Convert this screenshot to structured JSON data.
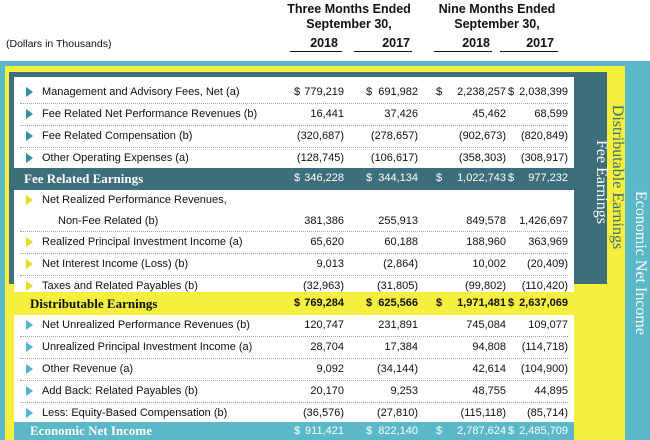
{
  "header": {
    "three_months": [
      "Three Months Ended",
      "September 30,"
    ],
    "nine_months": [
      "Nine Months Ended",
      "September 30,"
    ],
    "years": [
      "2018",
      "2017",
      "2018",
      "2017"
    ],
    "dollars_note": "(Dollars in Thousands)"
  },
  "side_labels": {
    "fee_related": "Fee Earnings",
    "distributable": "Distributable Earnings",
    "economic": "Economic Net Income"
  },
  "currency_symbol": "$",
  "rows": [
    {
      "label": "Management and Advisory Fees, Net (a)",
      "values": [
        "779,219",
        "691,982",
        "2,238,257",
        "2,038,399"
      ],
      "dollar": true
    },
    {
      "label": "Fee Related Net Performance Revenues (b)",
      "values": [
        "16,441",
        "37,426",
        "45,462",
        "68,599"
      ]
    },
    {
      "label": "Fee Related Compensation (b)",
      "values": [
        "(320,687)",
        "(278,657)",
        "(902,673)",
        "(820,849)"
      ]
    },
    {
      "label": "Other Operating Expenses (a)",
      "values": [
        "(128,745)",
        "(106,617)",
        "(358,303)",
        "(308,917)"
      ]
    },
    {
      "label": "Fee Related Earnings",
      "values": [
        "346,228",
        "344,134",
        "1,022,743",
        "977,232"
      ],
      "dollar": true
    },
    {
      "label": "Net Realized Performance Revenues,",
      "label2": "Non-Fee Related (b)",
      "values": [
        "381,386",
        "255,913",
        "849,578",
        "1,426,697"
      ]
    },
    {
      "label": "Realized Principal Investment Income (a)",
      "values": [
        "65,620",
        "60,188",
        "188,960",
        "363,969"
      ]
    },
    {
      "label": "Net Interest Income (Loss) (b)",
      "values": [
        "9,013",
        "(2,864)",
        "10,002",
        "(20,409)"
      ]
    },
    {
      "label": "Taxes and Related Payables (b)",
      "values": [
        "(32,963)",
        "(31,805)",
        "(99,802)",
        "(110,420)"
      ]
    },
    {
      "label": "Distributable Earnings",
      "values": [
        "769,284",
        "625,566",
        "1,971,481",
        "2,637,069"
      ],
      "dollar": true
    },
    {
      "label": "Net Unrealized Performance Revenues (b)",
      "values": [
        "120,747",
        "231,891",
        "745,084",
        "109,077"
      ]
    },
    {
      "label": "Unrealized Principal Investment Income (a)",
      "values": [
        "28,704",
        "17,384",
        "94,808",
        "(114,718)"
      ]
    },
    {
      "label": "Other Revenue (a)",
      "values": [
        "9,092",
        "(34,144)",
        "42,614",
        "(104,900)"
      ]
    },
    {
      "label": "Add Back: Related Payables (b)",
      "values": [
        "20,170",
        "9,253",
        "48,755",
        "44,895"
      ]
    },
    {
      "label": "Less: Equity-Based Compensation (b)",
      "values": [
        "(36,576)",
        "(27,810)",
        "(115,118)",
        "(85,714)"
      ]
    },
    {
      "label": "Economic Net Income",
      "values": [
        "911,421",
        "822,140",
        "2,787,624",
        "2,485,709"
      ],
      "dollar": true
    }
  ],
  "colors": {
    "teal_dark": "#3d6e7c",
    "yellow": "#f4f03d",
    "blue": "#5ab8c9",
    "arrow_teal": "#2f8fa3",
    "arrow_yellow": "#e6de24",
    "arrow_blue": "#4fb5d0"
  }
}
